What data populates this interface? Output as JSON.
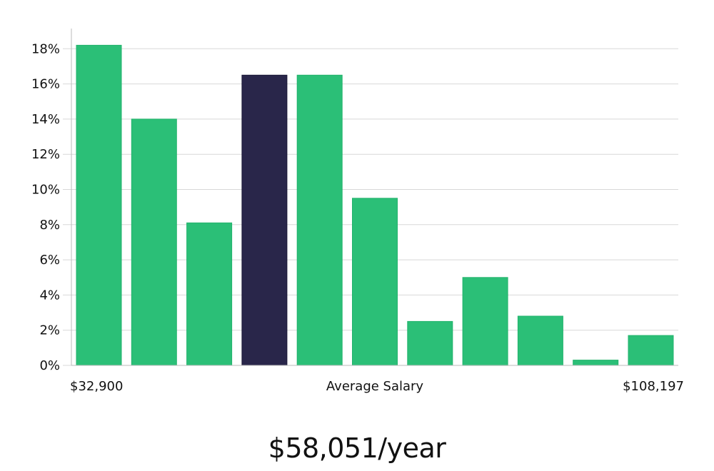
{
  "chart_data": {
    "type": "bar",
    "title": "",
    "xlabel": "Average Salary",
    "ylabel": "",
    "x_range_labels": {
      "min": "$32,900",
      "max": "$108,197"
    },
    "ylim": [
      0,
      19
    ],
    "y_ticks": [
      0,
      2,
      4,
      6,
      8,
      10,
      12,
      14,
      16,
      18
    ],
    "y_tick_suffix": "%",
    "grid": true,
    "values": [
      18.2,
      14.0,
      8.1,
      16.5,
      16.5,
      9.5,
      2.5,
      5.0,
      2.8,
      0.3,
      1.7
    ],
    "highlight_index": 3,
    "colors": {
      "bar": "#2BBF77",
      "highlight": "#29264A",
      "grid": "#D8D8D8",
      "axis": "#BBBBBB"
    }
  },
  "summary": {
    "average_salary": "$58,051/year"
  }
}
